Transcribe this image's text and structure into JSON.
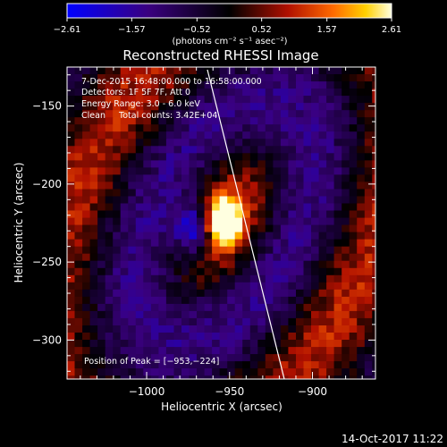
{
  "chart_data": {
    "type": "heatmap",
    "title": "Reconstructed RHESSI Image",
    "xlabel": "Heliocentric X (arcsec)",
    "ylabel": "Heliocentric Y (arcsec)",
    "xlim": [
      -1048,
      -862
    ],
    "ylim": [
      -325,
      -125
    ],
    "x_ticks": [
      -1000,
      -950,
      -900
    ],
    "x_tick_labels": [
      "−1000",
      "−950",
      "−900"
    ],
    "y_ticks": [
      -150,
      -200,
      -250,
      -300
    ],
    "y_tick_labels": [
      "−150",
      "−200",
      "−250",
      "−300"
    ],
    "peak": [
      -953,
      -224
    ],
    "colorbar": {
      "min": -2.61,
      "max": 2.61,
      "ticks": [
        -2.61,
        -1.57,
        -0.52,
        0.52,
        1.57,
        2.61
      ],
      "tick_labels": [
        "−2.61",
        "−1.57",
        "−0.52",
        "0.52",
        "1.57",
        "2.61"
      ],
      "units": "(photons cm⁻² s⁻¹ asec⁻²)"
    },
    "colormap": [
      "#0000ff",
      "#3a0080",
      "#000000",
      "#b01000",
      "#ff6a00",
      "#ffd000",
      "#ffffe0"
    ],
    "annotations": [
      "7-Dec-2015 16:48:00.000 to 16:58:00.000",
      "Detectors: 1F 5F 7F, Att 0",
      "Energy Range: 3.0 - 6.0 keV",
      "Clean     Total counts: 3.42E+04"
    ],
    "peak_label": "Position of Peak = [−953,−224]"
  },
  "footer": {
    "timestamp": "14-Oct-2017 11:22"
  }
}
